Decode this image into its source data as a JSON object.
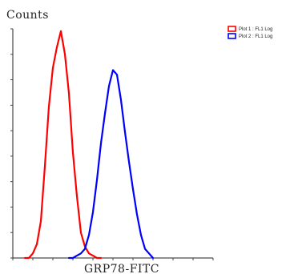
{
  "chart_data": {
    "type": "line",
    "title": "",
    "xlabel": "GRP78-FITC",
    "ylabel": "Counts",
    "x_scale": "log",
    "xlim": [
      0,
      1
    ],
    "ylim": [
      0,
      1
    ],
    "grid": false,
    "legend_position": "top-right",
    "series": [
      {
        "name": "Plot 1 : FL1 Log",
        "color": "#ff0000",
        "x": [
          0.06,
          0.08,
          0.1,
          0.12,
          0.14,
          0.16,
          0.18,
          0.2,
          0.22,
          0.24,
          0.26,
          0.28,
          0.3,
          0.32,
          0.34,
          0.36,
          0.38,
          0.4,
          0.42,
          0.44
        ],
        "y": [
          0.0,
          0.0,
          0.02,
          0.06,
          0.16,
          0.4,
          0.66,
          0.83,
          0.92,
          0.99,
          0.89,
          0.72,
          0.46,
          0.27,
          0.11,
          0.05,
          0.02,
          0.01,
          0.0,
          0.0
        ]
      },
      {
        "name": "Plot 2 : FL1 Log",
        "color": "#0000ff",
        "x": [
          0.28,
          0.3,
          0.32,
          0.34,
          0.36,
          0.38,
          0.4,
          0.42,
          0.44,
          0.46,
          0.48,
          0.5,
          0.52,
          0.54,
          0.56,
          0.58,
          0.6,
          0.62,
          0.64,
          0.66,
          0.68,
          0.7
        ],
        "y": [
          0.0,
          0.0,
          0.01,
          0.02,
          0.04,
          0.1,
          0.2,
          0.34,
          0.5,
          0.63,
          0.75,
          0.82,
          0.8,
          0.69,
          0.55,
          0.42,
          0.3,
          0.19,
          0.1,
          0.04,
          0.02,
          0.0
        ]
      }
    ]
  }
}
